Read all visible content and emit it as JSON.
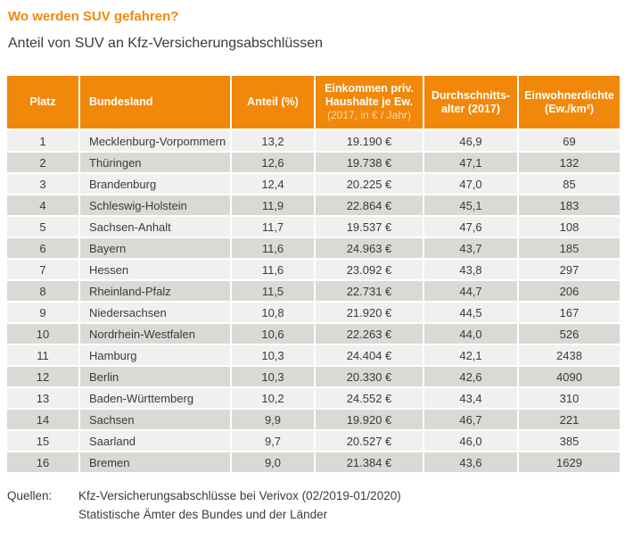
{
  "chart_data": {
    "type": "table",
    "title": "Wo werden SUV gefahren?",
    "subtitle": "Anteil von SUV an Kfz-Versicherungsabschlüssen",
    "columns": [
      "Platz",
      "Bundesland",
      "Anteil (%)",
      "Einkommen priv. Haushalte je Ew. (2017, in € / Jahr)",
      "Durchschnittsalter (2017)",
      "Einwohnerdichte (Ew./km²)"
    ],
    "rows": [
      [
        "1",
        "Mecklenburg-Vorpommern",
        "13,2",
        "19.190 €",
        "46,9",
        "69"
      ],
      [
        "2",
        "Thüringen",
        "12,6",
        "19.738 €",
        "47,1",
        "132"
      ],
      [
        "3",
        "Brandenburg",
        "12,4",
        "20.225 €",
        "47,0",
        "85"
      ],
      [
        "4",
        "Schleswig-Holstein",
        "11,9",
        "22.864 €",
        "45,1",
        "183"
      ],
      [
        "5",
        "Sachsen-Anhalt",
        "11,7",
        "19.537 €",
        "47,6",
        "108"
      ],
      [
        "6",
        "Bayern",
        "11,6",
        "24.963 €",
        "43,7",
        "185"
      ],
      [
        "7",
        "Hessen",
        "11,6",
        "23.092 €",
        "43,8",
        "297"
      ],
      [
        "8",
        "Rheinland-Pfalz",
        "11,5",
        "22.731 €",
        "44,7",
        "206"
      ],
      [
        "9",
        "Niedersachsen",
        "10,8",
        "21.920 €",
        "44,5",
        "167"
      ],
      [
        "10",
        "Nordrhein-Westfalen",
        "10,6",
        "22.263 €",
        "44,0",
        "526"
      ],
      [
        "11",
        "Hamburg",
        "10,3",
        "24.404 €",
        "42,1",
        "2438"
      ],
      [
        "12",
        "Berlin",
        "10,3",
        "20.330 €",
        "42,6",
        "4090"
      ],
      [
        "13",
        "Baden-Württemberg",
        "10,2",
        "24.552 €",
        "43,4",
        "310"
      ],
      [
        "14",
        "Sachsen",
        "9,9",
        "19.920 €",
        "46,7",
        "221"
      ],
      [
        "15",
        "Saarland",
        "9,7",
        "20.527 €",
        "46,0",
        "385"
      ],
      [
        "16",
        "Bremen",
        "9,0",
        "21.384 €",
        "43,6",
        "1629"
      ]
    ]
  },
  "header_display": {
    "columns": [
      {
        "key": "platz",
        "main": "Platz",
        "sub": ""
      },
      {
        "key": "bundesland",
        "main": "Bundesland",
        "sub": ""
      },
      {
        "key": "anteil",
        "main": "Anteil (%)",
        "sub": ""
      },
      {
        "key": "einkommen",
        "main": "Einkommen priv.\nHaushalte je Ew.",
        "sub": "(2017, in € / Jahr)"
      },
      {
        "key": "durchschnittsalter",
        "main": "Durchschnitts-\nalter (2017)",
        "sub": ""
      },
      {
        "key": "einwohnerdichte",
        "main": "Einwohnerdichte\n(Ew./km²)",
        "sub": ""
      }
    ]
  },
  "footer": {
    "label": "Quellen:",
    "sources": [
      "Kfz-Versicherungsabschlüsse bei Verivox (02/2019-01/2020)",
      "Statistische Ämter des Bundes und der Länder"
    ]
  },
  "colors": {
    "accent_orange": "#F1880A",
    "row_light": "#F0F0EE",
    "row_dark": "#D9D9D6",
    "text_dark": "#3B3B3A",
    "header_text": "#FFFFFF",
    "header_subnote": "#FAD9A5"
  }
}
